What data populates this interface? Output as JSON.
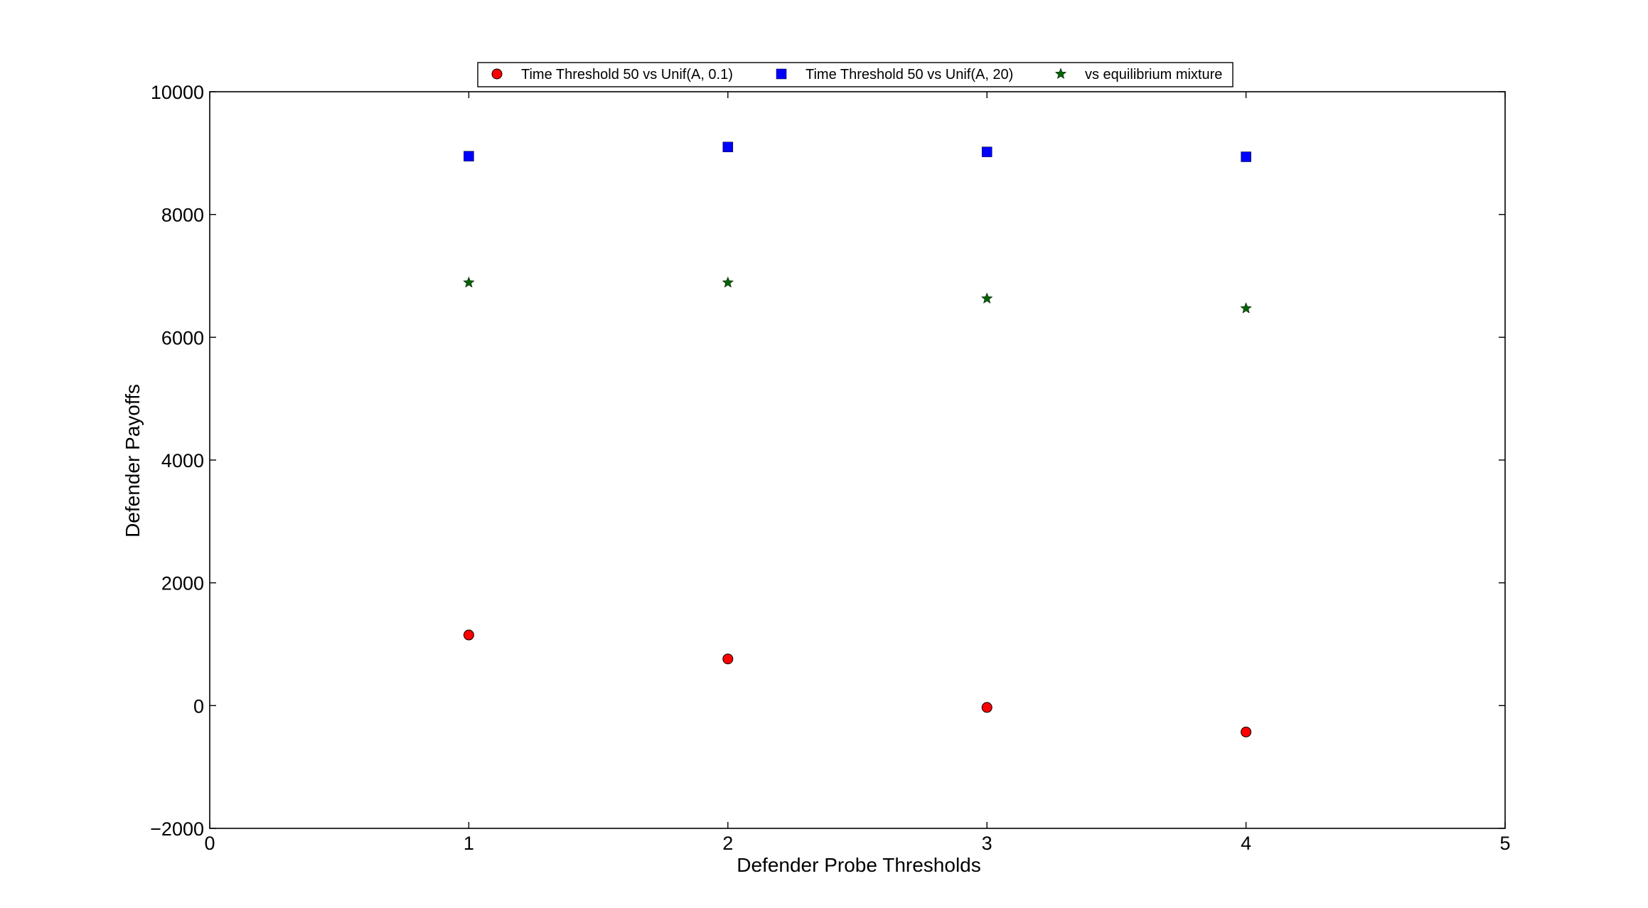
{
  "chart_data": {
    "type": "scatter",
    "title": "",
    "xlabel": "Defender Probe Thresholds",
    "ylabel": "Defender Payoffs",
    "xlim": [
      0,
      5
    ],
    "ylim": [
      -2000,
      10000
    ],
    "xticks": [
      0,
      1,
      2,
      3,
      4,
      5
    ],
    "yticks": [
      -2000,
      0,
      2000,
      4000,
      6000,
      8000,
      10000
    ],
    "xtick_labels": [
      "0",
      "1",
      "2",
      "3",
      "4",
      "5"
    ],
    "ytick_labels": [
      "−2000",
      "0",
      "2000",
      "4000",
      "6000",
      "8000",
      "10000"
    ],
    "grid": false,
    "legend_position": "top-center",
    "series": [
      {
        "name": "Time Threshold 50 vs Unif(A, 0.1)",
        "marker": "circle",
        "color": "#ff0000",
        "x": [
          1,
          2,
          3,
          4
        ],
        "values": [
          1150,
          760,
          -30,
          -430
        ]
      },
      {
        "name": "Time Threshold 50 vs Unif(A, 20)",
        "marker": "square",
        "color": "#0000ff",
        "x": [
          1,
          2,
          3,
          4
        ],
        "values": [
          8950,
          9100,
          9020,
          8940
        ]
      },
      {
        "name": "vs equilibrium mixture",
        "marker": "star",
        "color": "#006400",
        "x": [
          1,
          2,
          3,
          4
        ],
        "values": [
          6890,
          6890,
          6630,
          6470
        ]
      }
    ]
  }
}
